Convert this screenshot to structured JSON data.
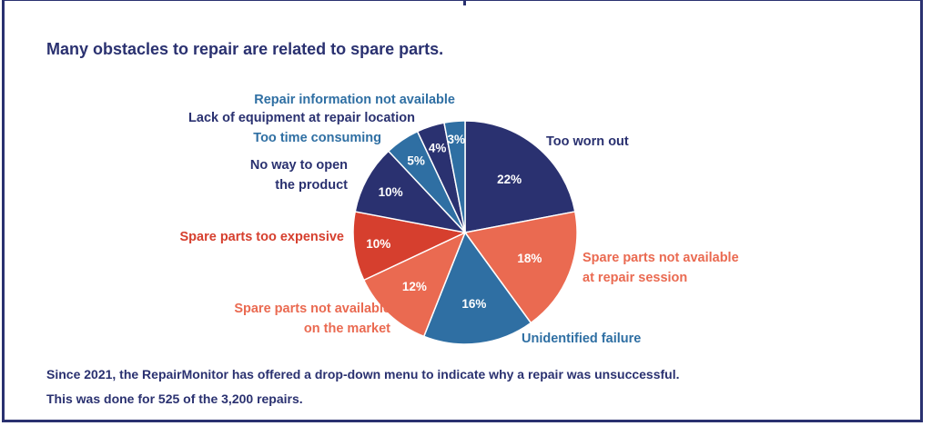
{
  "title": "Many obstacles to repair are related to spare parts.",
  "footer": {
    "line1": "Since 2021, the RepairMonitor has offered a drop-down menu to indicate why a repair was unsuccessful.",
    "line2": "This was done for 525 of the 3,200 repairs."
  },
  "colors": {
    "navy": "#2a3170",
    "red": "#d63f2e",
    "salmon": "#ea6a51",
    "blue": "#2f6fa3"
  },
  "chart_data": {
    "type": "pie",
    "start": "12 o'clock, clockwise",
    "slices": [
      {
        "label": [
          "Too worn out"
        ],
        "value": 22,
        "pct_text": "22%",
        "color": "#2a3170",
        "label_color": "#2a3170"
      },
      {
        "label": [
          "Spare parts not available",
          "at repair session"
        ],
        "value": 18,
        "pct_text": "18%",
        "color": "#ea6a51",
        "label_color": "#ea6a51"
      },
      {
        "label": [
          "Unidentified failure"
        ],
        "value": 16,
        "pct_text": "16%",
        "color": "#2f6fa3",
        "label_color": "#2f6fa3"
      },
      {
        "label": [
          "Spare parts not available",
          "on the market"
        ],
        "value": 12,
        "pct_text": "12%",
        "color": "#ea6a51",
        "label_color": "#ea6a51"
      },
      {
        "label": [
          "Spare parts too expensive"
        ],
        "value": 10,
        "pct_text": "10%",
        "color": "#d63f2e",
        "label_color": "#d63f2e"
      },
      {
        "label": [
          "No way to open",
          "the product"
        ],
        "value": 10,
        "pct_text": "10%",
        "color": "#2a3170",
        "label_color": "#2a3170"
      },
      {
        "label": [
          "Too time consuming"
        ],
        "value": 5,
        "pct_text": "5%",
        "color": "#2f6fa3",
        "label_color": "#2f6fa3"
      },
      {
        "label": [
          "Lack of equipment at repair location"
        ],
        "value": 4,
        "pct_text": "4%",
        "color": "#2a3170",
        "label_color": "#2a3170"
      },
      {
        "label": [
          "Repair information not available"
        ],
        "value": 3,
        "pct_text": "3%",
        "color": "#2f6fa3",
        "label_color": "#2f6fa3"
      }
    ]
  }
}
